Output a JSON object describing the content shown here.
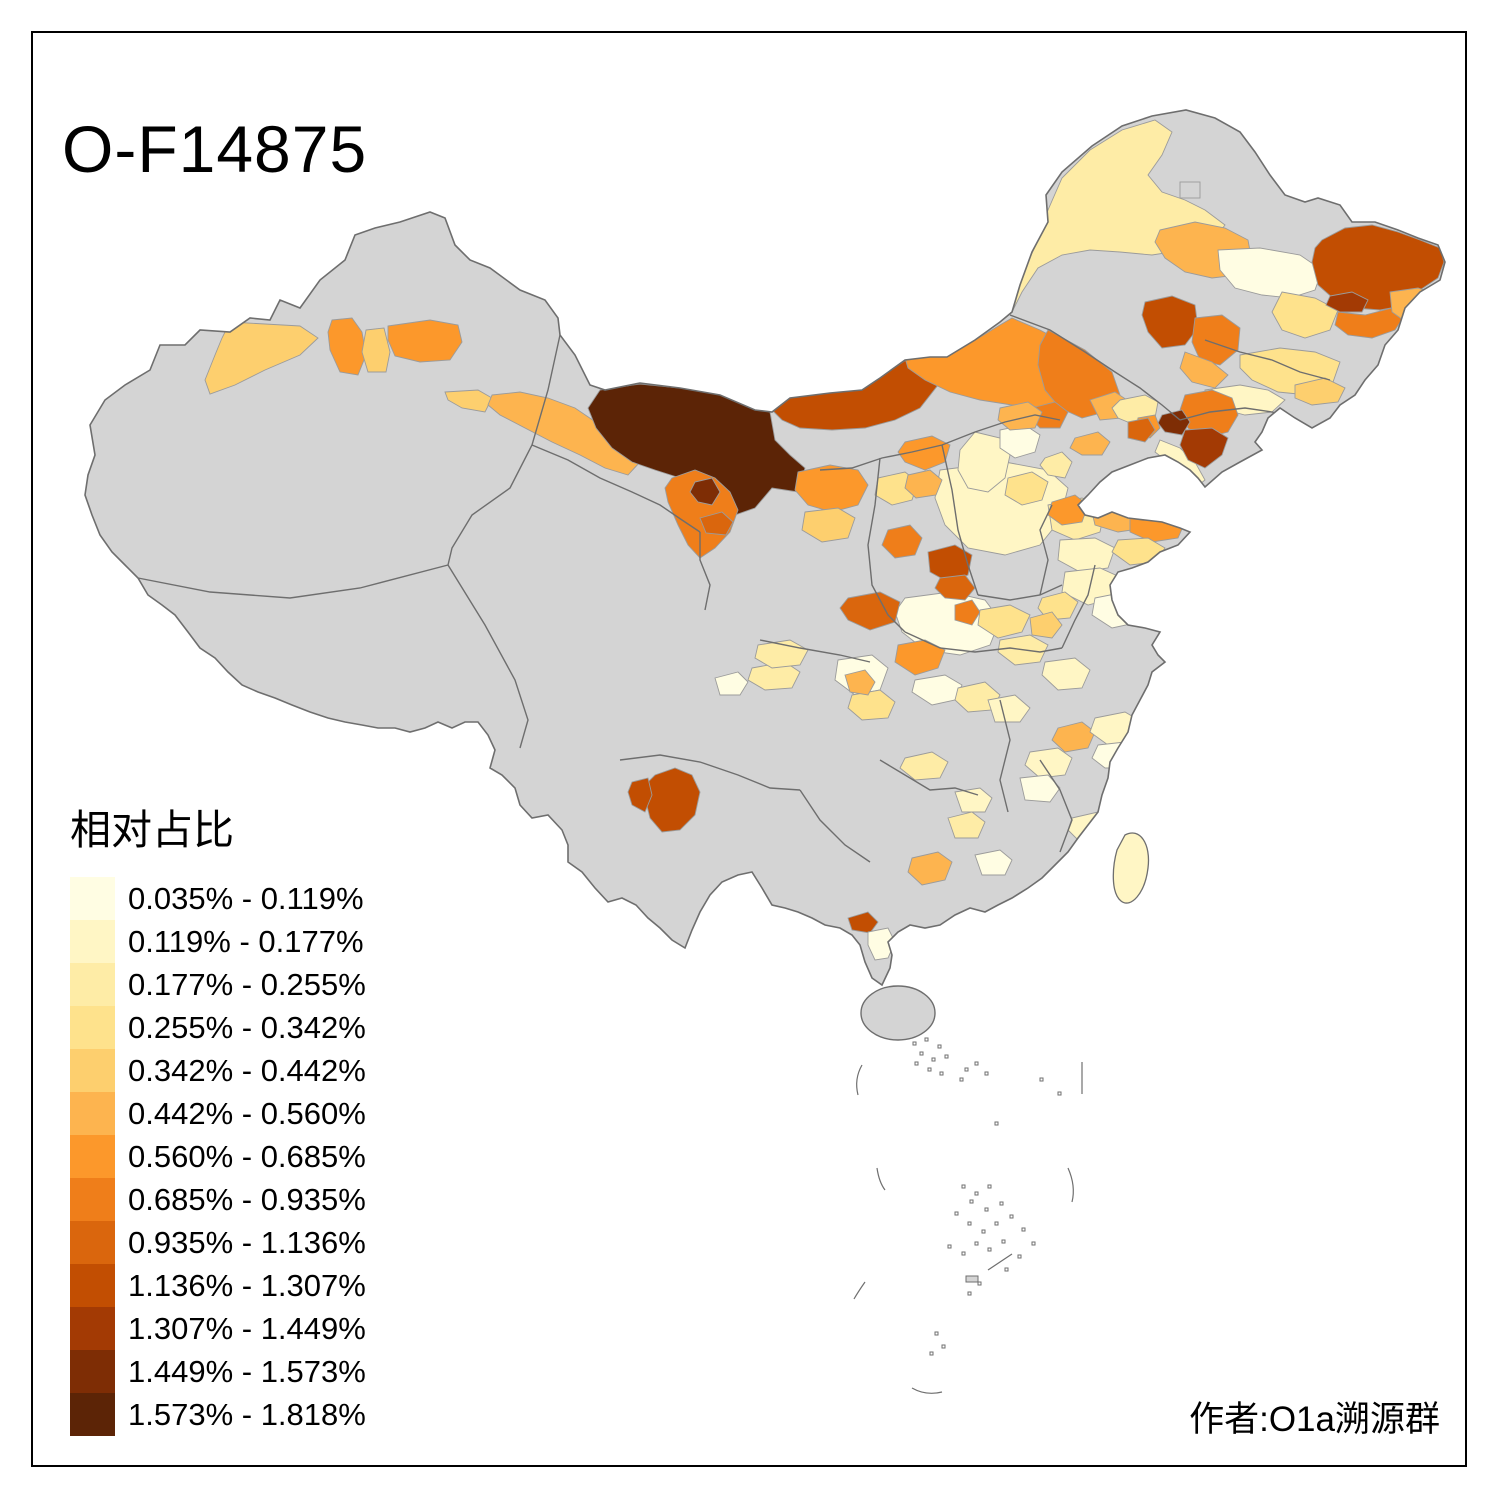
{
  "title": "O-F14875",
  "credit": "作者:O1a溯源群",
  "legend": {
    "title": "相对占比",
    "items": [
      {
        "range": "0.035% - 0.119%",
        "color": "#FFFDE3"
      },
      {
        "range": "0.119% - 0.177%",
        "color": "#FFF6C5"
      },
      {
        "range": "0.177% - 0.255%",
        "color": "#FEECA6"
      },
      {
        "range": "0.255% - 0.342%",
        "color": "#FEE28C"
      },
      {
        "range": "0.342% - 0.442%",
        "color": "#FDCF6E"
      },
      {
        "range": "0.442% - 0.560%",
        "color": "#FDB44F"
      },
      {
        "range": "0.560% - 0.685%",
        "color": "#FC982B"
      },
      {
        "range": "0.685% - 0.935%",
        "color": "#EF7E1A"
      },
      {
        "range": "0.935% - 1.136%",
        "color": "#DA660D"
      },
      {
        "range": "1.136% - 1.307%",
        "color": "#C24E02"
      },
      {
        "range": "1.307% - 1.449%",
        "color": "#A33A04"
      },
      {
        "range": "1.449% - 1.573%",
        "color": "#7E2D05"
      },
      {
        "range": "1.573% - 1.818%",
        "color": "#5C2406"
      }
    ]
  },
  "map": {
    "no_data_color": "#D4D4D4",
    "background_color": "#FFFFFF",
    "boundary_color": "#6E6E6E",
    "frame_color": "#000000"
  },
  "chart_data": {
    "type": "heatmap",
    "subtype": "choropleth-map",
    "region": "China (prefecture level)",
    "title": "O-F14875",
    "value_label": "相对占比",
    "units": "%",
    "legend_position": "bottom-left",
    "class_breaks_percent": [
      0.035,
      0.119,
      0.177,
      0.255,
      0.342,
      0.442,
      0.56,
      0.685,
      0.935,
      1.136,
      1.307,
      1.449,
      1.573,
      1.818
    ],
    "attribution": "作者:O1a溯源群"
  }
}
